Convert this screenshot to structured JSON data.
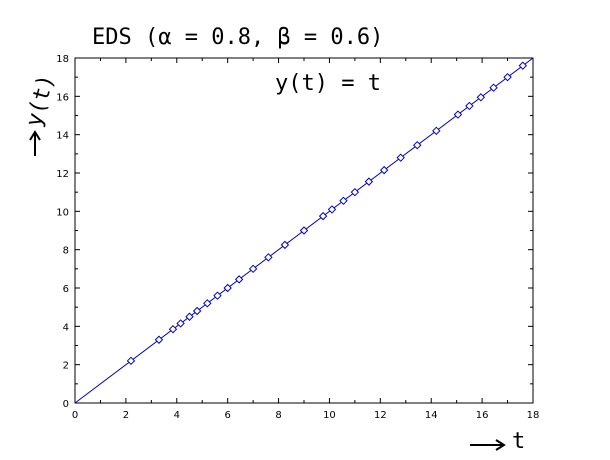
{
  "chart_data": {
    "type": "line",
    "title": "EDS (α = 0.8, β = 0.6)",
    "annotation": "y(t) = t",
    "ylabel": "y(t)",
    "xlabel": "t",
    "xlim": [
      0,
      18
    ],
    "ylim": [
      0,
      18
    ],
    "xticks": [
      0,
      2,
      4,
      6,
      8,
      10,
      12,
      14,
      16,
      18
    ],
    "yticks": [
      0,
      2,
      4,
      6,
      8,
      10,
      12,
      14,
      16,
      18
    ],
    "grid": false,
    "colors": {
      "series": "#0000cc",
      "axis": "#000000"
    },
    "series": [
      {
        "x": [
          0,
          18
        ],
        "y": [
          0,
          18
        ],
        "marker": "none"
      },
      {
        "x": [
          2.2,
          3.3,
          3.85,
          4.15,
          4.5,
          4.8,
          5.2,
          5.6,
          6.0,
          6.45,
          7.0,
          7.6,
          8.25,
          9.0,
          9.75,
          10.1,
          10.55,
          11.0,
          11.55,
          12.15,
          12.8,
          13.45,
          14.2,
          15.05,
          15.5,
          15.95,
          16.45,
          17.0,
          17.6
        ],
        "y": [
          2.2,
          3.3,
          3.85,
          4.15,
          4.5,
          4.8,
          5.2,
          5.6,
          6.0,
          6.45,
          7.0,
          7.6,
          8.25,
          9.0,
          9.75,
          10.1,
          10.55,
          11.0,
          11.55,
          12.15,
          12.8,
          13.45,
          14.2,
          15.05,
          15.5,
          15.95,
          16.45,
          17.0,
          17.6
        ],
        "marker": "diamond"
      }
    ]
  }
}
